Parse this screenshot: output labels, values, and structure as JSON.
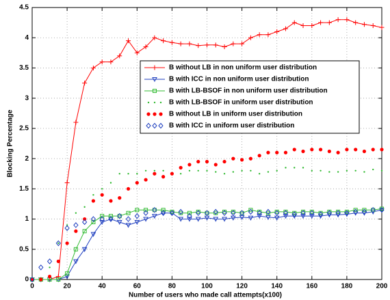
{
  "chart_data": {
    "type": "line",
    "xlabel": "Number of users who made call attempts(x100)",
    "ylabel": "Blocking Percentage",
    "x": [
      0,
      5,
      10,
      15,
      20,
      25,
      30,
      35,
      40,
      45,
      50,
      55,
      60,
      65,
      70,
      75,
      80,
      85,
      90,
      95,
      100,
      105,
      110,
      115,
      120,
      125,
      130,
      135,
      140,
      145,
      150,
      155,
      160,
      165,
      170,
      175,
      180,
      185,
      190,
      195,
      200
    ],
    "xlim": [
      0,
      200
    ],
    "xticks": [
      0,
      20,
      40,
      60,
      80,
      100,
      120,
      140,
      160,
      180,
      200
    ],
    "ylim": [
      0,
      4.5
    ],
    "yticks": [
      0,
      0.5,
      1,
      1.5,
      2,
      2.5,
      3,
      3.5,
      4,
      4.5
    ],
    "legend": "upper center",
    "series": [
      {
        "name": "B without LB in non uniform user distribution",
        "color": "#ff0000",
        "marker": "plus",
        "linestyle": "solid",
        "values": [
          0,
          0,
          0,
          0.05,
          1.6,
          2.6,
          3.25,
          3.5,
          3.6,
          3.6,
          3.7,
          3.95,
          3.75,
          3.85,
          4.0,
          3.95,
          3.92,
          3.9,
          3.9,
          3.87,
          3.88,
          3.88,
          3.85,
          3.9,
          3.9,
          4.0,
          4.05,
          4.05,
          4.1,
          4.15,
          4.25,
          4.2,
          4.2,
          4.25,
          4.25,
          4.3,
          4.3,
          4.25,
          4.22,
          4.2,
          4.17
        ]
      },
      {
        "name": "B with ICC in non uniform user distribution",
        "color": "#1f3fbf",
        "marker": "triangle-down",
        "linestyle": "solid",
        "values": [
          0,
          0,
          0,
          0,
          0.05,
          0.3,
          0.5,
          0.75,
          0.95,
          1.0,
          0.95,
          0.9,
          0.95,
          1.0,
          1.05,
          1.1,
          1.1,
          1.0,
          1.0,
          1.0,
          1.02,
          1.0,
          1.0,
          1.02,
          1.03,
          1.02,
          1.05,
          1.03,
          1.02,
          1.05,
          1.05,
          1.05,
          1.05,
          1.05,
          1.07,
          1.07,
          1.08,
          1.1,
          1.1,
          1.12,
          1.15
        ]
      },
      {
        "name": "B with LB-BSOF in non uniform user distribution",
        "color": "#33bb33",
        "marker": "square",
        "linestyle": "solid",
        "values": [
          0,
          0,
          0,
          0,
          0.1,
          0.5,
          0.8,
          0.95,
          1.05,
          1.05,
          1.05,
          1.1,
          1.15,
          1.15,
          1.15,
          1.15,
          1.12,
          1.1,
          1.1,
          1.12,
          1.1,
          1.1,
          1.12,
          1.12,
          1.1,
          1.15,
          1.12,
          1.1,
          1.12,
          1.12,
          1.1,
          1.12,
          1.12,
          1.1,
          1.12,
          1.12,
          1.12,
          1.15,
          1.15,
          1.15,
          1.17
        ]
      },
      {
        "name": "B with LB-BSOF in uniform user distribution",
        "color": "#33bb33",
        "marker": "point",
        "linestyle": "none",
        "values": [
          0,
          0,
          0.2,
          0.6,
          0.9,
          1.1,
          1.2,
          1.4,
          1.5,
          1.6,
          1.75,
          1.75,
          1.75,
          1.8,
          1.8,
          1.8,
          1.75,
          1.75,
          1.8,
          1.8,
          1.8,
          1.78,
          1.75,
          1.78,
          1.8,
          1.8,
          1.75,
          1.78,
          1.8,
          1.85,
          1.85,
          1.85,
          1.8,
          1.8,
          1.78,
          1.78,
          1.8,
          1.8,
          1.78,
          1.82,
          1.8
        ]
      },
      {
        "name": "B without LB in uniform user distribution",
        "color": "#ff0000",
        "marker": "circle",
        "linestyle": "none",
        "values": [
          0,
          0,
          0.05,
          0.3,
          0.6,
          0.8,
          1.0,
          1.3,
          1.4,
          1.3,
          1.35,
          1.5,
          1.6,
          1.65,
          1.75,
          1.7,
          1.75,
          1.85,
          1.9,
          1.95,
          1.95,
          1.9,
          1.95,
          2.0,
          1.98,
          2.0,
          2.05,
          2.1,
          2.1,
          2.1,
          2.15,
          2.12,
          2.15,
          2.15,
          2.12,
          2.1,
          2.15,
          2.15,
          2.12,
          2.15,
          2.15
        ]
      },
      {
        "name": "B with ICC in uniform user distribution",
        "color": "#1f3fbf",
        "marker": "diamond",
        "linestyle": "none",
        "values": [
          0,
          0.2,
          0.3,
          0.6,
          0.85,
          0.9,
          0.95,
          1.0,
          1.0,
          1.0,
          1.05,
          1.0,
          1.05,
          1.1,
          1.15,
          1.1,
          1.1,
          1.12,
          1.05,
          1.1,
          1.1,
          1.12,
          1.1,
          1.1,
          1.1,
          1.12,
          1.1,
          1.12,
          1.1,
          1.1,
          1.08,
          1.1,
          1.1,
          1.08,
          1.1,
          1.1,
          1.1,
          1.12,
          1.12,
          1.15,
          1.15
        ]
      }
    ]
  }
}
